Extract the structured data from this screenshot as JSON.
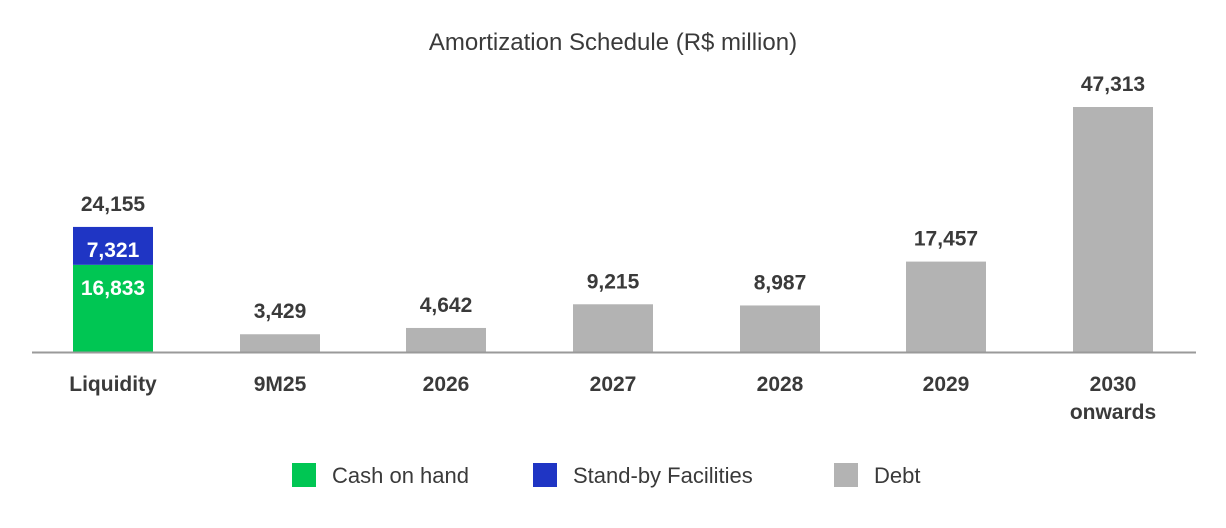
{
  "chart_data": {
    "type": "bar",
    "title": "Amortization Schedule (R$ million)",
    "categories": [
      [
        "Liquidity"
      ],
      [
        "9M25"
      ],
      [
        "2026"
      ],
      [
        "2027"
      ],
      [
        "2028"
      ],
      [
        "2029"
      ],
      [
        "2030",
        "onwards"
      ]
    ],
    "series": [
      {
        "name": "Cash on hand",
        "color": "#00c653",
        "values": [
          16833,
          null,
          null,
          null,
          null,
          null,
          null
        ],
        "labels": [
          "16,833",
          "",
          "",
          "",
          "",
          "",
          ""
        ]
      },
      {
        "name": "Stand-by Facilities",
        "color": "#1f35c4",
        "values": [
          7321,
          null,
          null,
          null,
          null,
          null,
          null
        ],
        "labels": [
          "7,321",
          "",
          "",
          "",
          "",
          "",
          ""
        ]
      },
      {
        "name": "Debt",
        "color": "#b3b3b3",
        "values": [
          null,
          3429,
          4642,
          9215,
          8987,
          17457,
          47313
        ],
        "labels": [
          "",
          "3,429",
          "4,642",
          "9,215",
          "8,987",
          "17,457",
          "47,313"
        ]
      }
    ],
    "totals": [
      "24,155",
      "3,429",
      "4,642",
      "9,215",
      "8,987",
      "17,457",
      "47,313"
    ],
    "total_values": [
      24155,
      3429,
      4642,
      9215,
      8987,
      17457,
      47313
    ],
    "stacked": true,
    "legend_position": "bottom-center",
    "grid": false
  }
}
